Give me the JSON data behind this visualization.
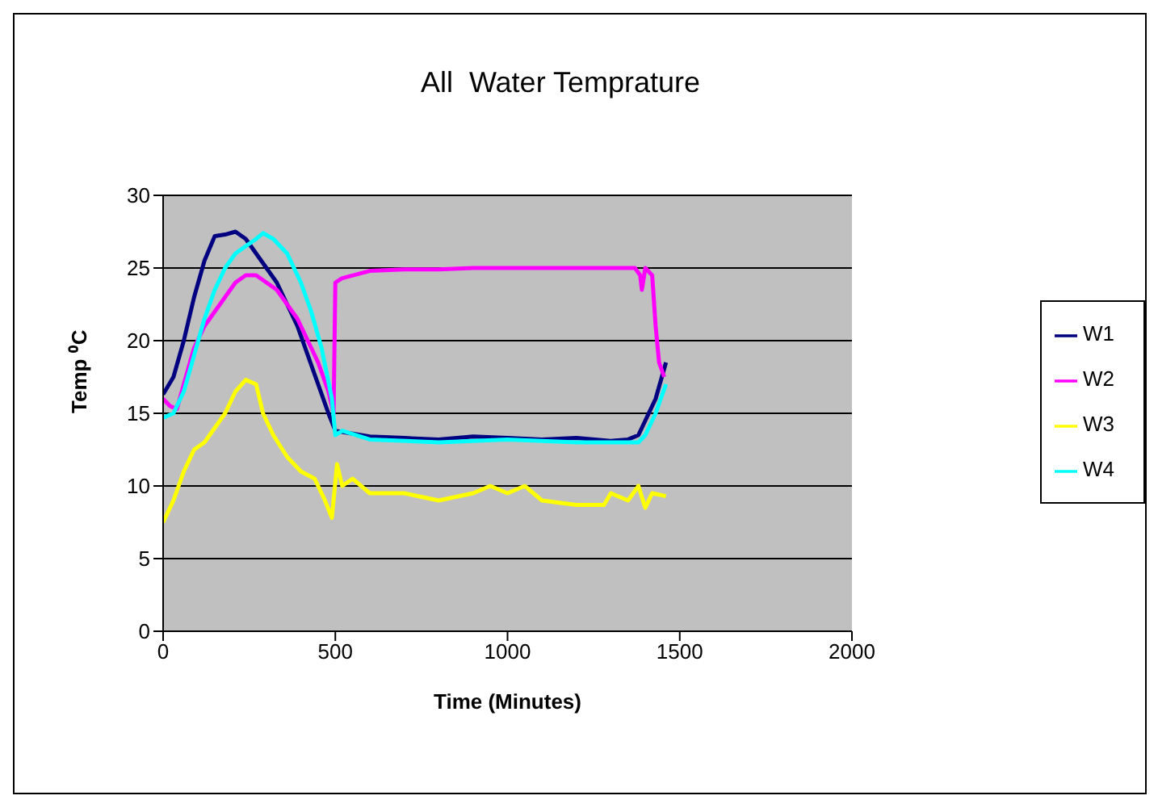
{
  "chart_data": {
    "type": "line",
    "title": "All  Water Temprature",
    "xlabel": "Time (Minutes)",
    "ylabel": "Temp ⁰C",
    "xlim": [
      0,
      2000
    ],
    "xticks": [
      0,
      500,
      1000,
      1500,
      2000
    ],
    "ylim": [
      0,
      30
    ],
    "yticks": [
      0,
      5,
      10,
      15,
      20,
      25,
      30
    ],
    "grid": "y",
    "legend": "right",
    "marker": "none",
    "line_style": "solid",
    "series": [
      {
        "name": "W1",
        "color": "#000080",
        "x": [
          0,
          30,
          60,
          90,
          120,
          150,
          180,
          210,
          240,
          270,
          300,
          330,
          360,
          390,
          420,
          450,
          480,
          500,
          550,
          600,
          700,
          800,
          900,
          1000,
          1100,
          1200,
          1300,
          1350,
          1380,
          1400,
          1430,
          1460
        ],
        "values": [
          16.3,
          17.5,
          20,
          23,
          25.5,
          27.2,
          27.3,
          27.5,
          27,
          26,
          25,
          24,
          22.5,
          21,
          19,
          17,
          15,
          13.8,
          13.6,
          13.4,
          13.3,
          13.2,
          13.4,
          13.3,
          13.2,
          13.3,
          13.1,
          13.2,
          13.5,
          14.5,
          16,
          18.5
        ]
      },
      {
        "name": "W2",
        "color": "#ff00ff",
        "x": [
          0,
          20,
          40,
          60,
          90,
          120,
          150,
          180,
          210,
          240,
          270,
          300,
          330,
          360,
          390,
          420,
          450,
          480,
          495,
          500,
          520,
          600,
          700,
          800,
          900,
          1000,
          1100,
          1200,
          1300,
          1370,
          1385,
          1390,
          1400,
          1420,
          1430,
          1440,
          1455
        ],
        "values": [
          16,
          15.5,
          15.3,
          17,
          19.5,
          21,
          22,
          23,
          24,
          24.5,
          24.5,
          24,
          23.5,
          22.5,
          21.5,
          20,
          18.5,
          16.5,
          15,
          24,
          24.3,
          24.8,
          24.9,
          24.9,
          25,
          25,
          25,
          25,
          25,
          25,
          24.5,
          23.5,
          25,
          24.5,
          21,
          18.5,
          17.5
        ]
      },
      {
        "name": "W3",
        "color": "#ffff00",
        "x": [
          0,
          30,
          60,
          90,
          120,
          150,
          180,
          210,
          240,
          270,
          290,
          320,
          360,
          400,
          440,
          470,
          490,
          505,
          520,
          550,
          600,
          700,
          800,
          900,
          950,
          1000,
          1050,
          1100,
          1200,
          1280,
          1300,
          1350,
          1380,
          1400,
          1420,
          1460
        ],
        "values": [
          7.5,
          9,
          11,
          12.5,
          13,
          14,
          15,
          16.5,
          17.3,
          17,
          15,
          13.5,
          12,
          11,
          10.5,
          9,
          7.8,
          11.5,
          10,
          10.5,
          9.5,
          9.5,
          9,
          9.5,
          10,
          9.5,
          10,
          9,
          8.7,
          8.7,
          9.5,
          9,
          10,
          8.5,
          9.5,
          9.3
        ]
      },
      {
        "name": "W4",
        "color": "#00ffff",
        "x": [
          0,
          30,
          60,
          90,
          120,
          150,
          180,
          210,
          240,
          270,
          290,
          320,
          360,
          400,
          430,
          460,
          490,
          500,
          520,
          600,
          800,
          1000,
          1200,
          1380,
          1400,
          1430,
          1460
        ],
        "values": [
          14.7,
          15,
          16.5,
          19,
          21.5,
          23.5,
          25,
          26,
          26.5,
          27,
          27.4,
          27,
          26,
          24,
          22,
          19.5,
          16,
          13.5,
          13.8,
          13.2,
          13,
          13.2,
          13,
          13,
          13.5,
          15,
          17
        ]
      }
    ]
  }
}
